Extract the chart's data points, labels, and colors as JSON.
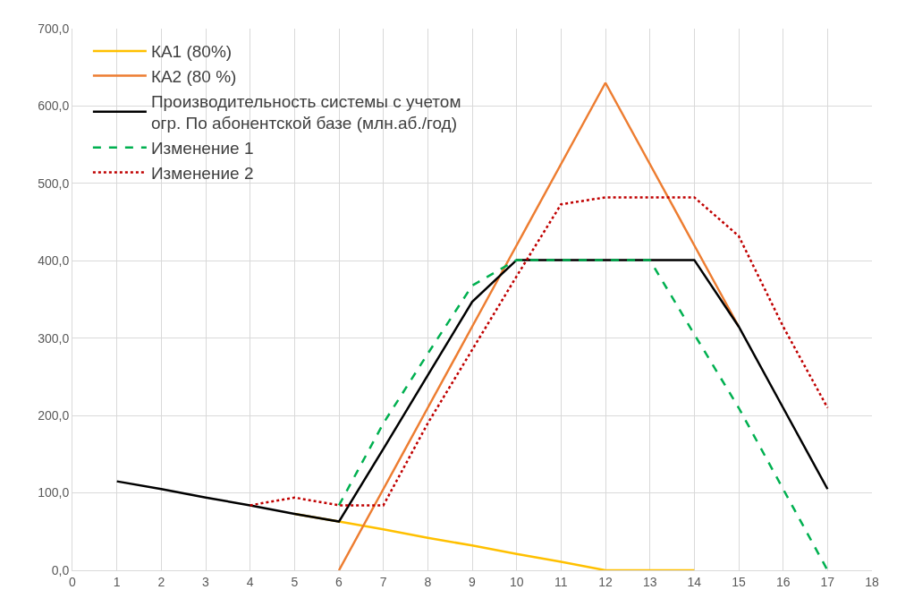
{
  "chart_data": {
    "type": "line",
    "x": [
      1,
      2,
      3,
      4,
      5,
      6,
      7,
      8,
      9,
      10,
      11,
      12,
      13,
      14,
      15,
      16,
      17
    ],
    "series": [
      {
        "name": "КА1 (80%)",
        "color": "#ffc000",
        "line_style": "solid",
        "values": [
          null,
          null,
          null,
          null,
          73,
          63,
          53,
          42,
          32,
          21,
          11,
          0,
          0,
          0,
          null,
          null,
          null
        ]
      },
      {
        "name": "КА2 (80 %)",
        "color": "#ed7d31",
        "line_style": "solid",
        "values": [
          null,
          null,
          null,
          null,
          null,
          0,
          105,
          210,
          315,
          420,
          525,
          630,
          525,
          420,
          315,
          null,
          null
        ]
      },
      {
        "name": "Производительность системы с учетом\nогр. По абонентской базе (млн.аб./год)",
        "color": "#000000",
        "line_style": "solid",
        "values": [
          115,
          105,
          94,
          84,
          73,
          63,
          157,
          252,
          347,
          401,
          401,
          401,
          401,
          401,
          315,
          210,
          105
        ]
      },
      {
        "name": "Изменение 1",
        "color": "#00b050",
        "line_style": "dashed",
        "values": [
          null,
          null,
          null,
          null,
          null,
          84,
          190,
          280,
          368,
          401,
          401,
          401,
          401,
          305,
          210,
          105,
          0
        ]
      },
      {
        "name": "Изменение 2",
        "color": "#c00000",
        "line_style": "dotted",
        "values": [
          null,
          null,
          null,
          84,
          94,
          84,
          84,
          190,
          285,
          380,
          473,
          482,
          482,
          482,
          432,
          315,
          210
        ]
      }
    ],
    "xlim": [
      0,
      18
    ],
    "xticks": [
      0,
      1,
      2,
      3,
      4,
      5,
      6,
      7,
      8,
      9,
      10,
      11,
      12,
      13,
      14,
      15,
      16,
      17,
      18
    ],
    "ylim": [
      0,
      700
    ],
    "yticks": [
      {
        "value": 0,
        "label": "0,0"
      },
      {
        "value": 100,
        "label": "100,0"
      },
      {
        "value": 200,
        "label": "200,0"
      },
      {
        "value": 300,
        "label": "300,0"
      },
      {
        "value": 400,
        "label": "400,0"
      },
      {
        "value": 500,
        "label": "500,0"
      },
      {
        "value": 600,
        "label": "600,0"
      },
      {
        "value": 700,
        "label": "700,0"
      }
    ],
    "grid": true,
    "legend": "top left",
    "marker": "none"
  }
}
